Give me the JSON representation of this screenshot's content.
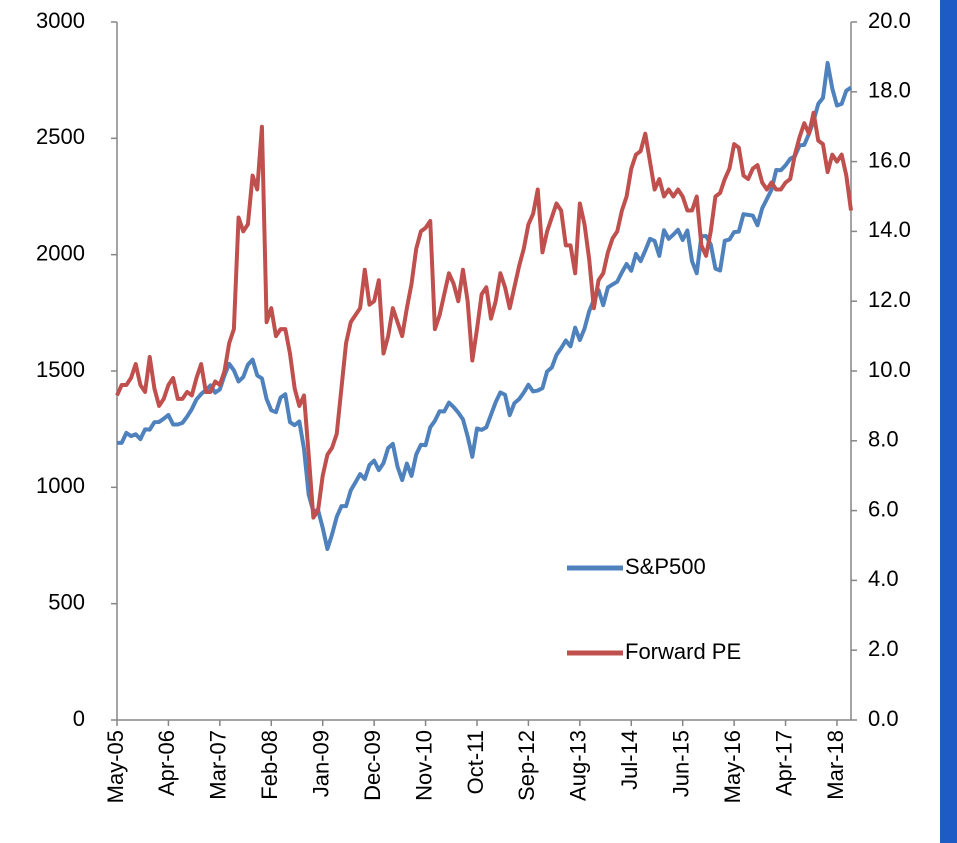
{
  "chart_data": {
    "type": "line",
    "categories": [
      "May-05",
      null,
      null,
      null,
      null,
      null,
      null,
      null,
      null,
      null,
      null,
      "Apr-06",
      null,
      null,
      null,
      null,
      null,
      null,
      null,
      null,
      null,
      null,
      "Mar-07",
      null,
      null,
      null,
      null,
      null,
      null,
      null,
      null,
      null,
      null,
      "Feb-08",
      null,
      null,
      null,
      null,
      null,
      null,
      null,
      null,
      null,
      null,
      "Jan-09",
      null,
      null,
      null,
      null,
      null,
      null,
      null,
      null,
      null,
      null,
      "Dec-09",
      null,
      null,
      null,
      null,
      null,
      null,
      null,
      null,
      null,
      null,
      "Nov-10",
      null,
      null,
      null,
      null,
      null,
      null,
      null,
      null,
      null,
      null,
      "Oct-11",
      null,
      null,
      null,
      null,
      null,
      null,
      null,
      null,
      null,
      null,
      "Sep-12",
      null,
      null,
      null,
      null,
      null,
      null,
      null,
      null,
      null,
      null,
      "Aug-13",
      null,
      null,
      null,
      null,
      null,
      null,
      null,
      null,
      null,
      null,
      "Jul-14",
      null,
      null,
      null,
      null,
      null,
      null,
      null,
      null,
      null,
      null,
      "Jun-15",
      null,
      null,
      null,
      null,
      null,
      null,
      null,
      null,
      null,
      null,
      "May-16",
      null,
      null,
      null,
      null,
      null,
      null,
      null,
      null,
      null,
      null,
      "Apr-17",
      null,
      null,
      null,
      null,
      null,
      null,
      null,
      null,
      null,
      null,
      "Mar-18",
      null,
      null,
      null
    ],
    "series": [
      {
        "name": "S&P500",
        "color": "#4f81bd",
        "axis": "y",
        "values": [
          1191,
          1191,
          1234,
          1220,
          1228,
          1207,
          1249,
          1248,
          1280,
          1281,
          1295,
          1311,
          1270,
          1270,
          1277,
          1304,
          1336,
          1378,
          1401,
          1418,
          1438,
          1407,
          1421,
          1482,
          1531,
          1503,
          1455,
          1474,
          1527,
          1549,
          1481,
          1468,
          1379,
          1331,
          1323,
          1386,
          1400,
          1280,
          1267,
          1283,
          1165,
          969,
          896,
          903,
          826,
          735,
          798,
          873,
          919,
          919,
          987,
          1021,
          1057,
          1036,
          1096,
          1115,
          1074,
          1104,
          1169,
          1187,
          1089,
          1031,
          1102,
          1049,
          1141,
          1183,
          1181,
          1258,
          1286,
          1327,
          1326,
          1364,
          1345,
          1321,
          1292,
          1219,
          1131,
          1253,
          1247,
          1258,
          1312,
          1366,
          1408,
          1398,
          1310,
          1362,
          1379,
          1407,
          1441,
          1412,
          1416,
          1426,
          1498,
          1515,
          1569,
          1598,
          1631,
          1606,
          1686,
          1633,
          1682,
          1757,
          1806,
          1848,
          1783,
          1859,
          1872,
          1884,
          1924,
          1960,
          1931,
          2003,
          1972,
          2018,
          2068,
          2059,
          1995,
          2105,
          2068,
          2086,
          2107,
          2063,
          2104,
          1972,
          1920,
          2079,
          2080,
          2044,
          1940,
          1932,
          2060,
          2065,
          2097,
          2099,
          2174,
          2171,
          2168,
          2126,
          2199,
          2239,
          2279,
          2364,
          2363,
          2384,
          2412,
          2423,
          2470,
          2472,
          2519,
          2575,
          2648,
          2674,
          2824,
          2714,
          2641,
          2648,
          2705,
          2718
        ]
      },
      {
        "name": "Forward PE",
        "color": "#c0504d",
        "axis": "y2",
        "values": [
          9.3,
          9.6,
          9.6,
          9.8,
          10.2,
          9.6,
          9.4,
          10.4,
          9.5,
          9.0,
          9.2,
          9.6,
          9.8,
          9.2,
          9.2,
          9.4,
          9.3,
          9.8,
          10.2,
          9.4,
          9.4,
          9.7,
          9.6,
          10.0,
          10.8,
          11.2,
          14.4,
          14.0,
          14.2,
          15.6,
          15.2,
          17.0,
          11.4,
          11.8,
          11.0,
          11.2,
          11.2,
          10.5,
          9.5,
          9.0,
          9.3,
          7.6,
          5.8,
          6.0,
          7.0,
          7.6,
          7.8,
          8.2,
          9.5,
          10.8,
          11.4,
          11.6,
          11.8,
          12.9,
          11.9,
          12.0,
          12.6,
          10.5,
          11.0,
          11.8,
          11.4,
          11.0,
          11.8,
          12.5,
          13.5,
          14.0,
          14.1,
          14.3,
          11.2,
          11.6,
          12.2,
          12.8,
          12.5,
          12.0,
          12.9,
          12.0,
          10.3,
          11.2,
          12.2,
          12.4,
          11.5,
          12.0,
          12.8,
          12.4,
          11.8,
          12.4,
          13.0,
          13.5,
          14.2,
          14.5,
          15.2,
          13.4,
          14.0,
          14.4,
          14.8,
          14.6,
          13.6,
          13.6,
          12.8,
          14.8,
          14.2,
          13.2,
          11.8,
          12.6,
          12.8,
          13.4,
          13.8,
          14.0,
          14.6,
          15.0,
          15.8,
          16.2,
          16.3,
          16.8,
          16.0,
          15.2,
          15.5,
          15.0,
          15.2,
          15.0,
          15.2,
          15.0,
          14.6,
          14.6,
          15.0,
          13.6,
          13.3,
          14.0,
          15.0,
          15.1,
          15.5,
          15.8,
          16.5,
          16.4,
          15.6,
          15.5,
          15.8,
          15.9,
          15.4,
          15.2,
          15.4,
          15.2,
          15.2,
          15.4,
          15.5,
          16.2,
          16.7,
          17.1,
          16.8,
          17.4,
          16.6,
          16.5,
          15.7,
          16.2,
          16.0,
          16.2,
          15.6,
          14.6
        ]
      }
    ],
    "ylim": [
      0,
      3000
    ],
    "yticks": [
      0,
      500,
      1000,
      1500,
      2000,
      2500,
      3000
    ],
    "y2lim": [
      0,
      20
    ],
    "y2ticks": [
      {
        "value": 0,
        "label": "0.0"
      },
      {
        "value": 2,
        "label": "2.0"
      },
      {
        "value": 4,
        "label": "4.0"
      },
      {
        "value": 6,
        "label": "6.0"
      },
      {
        "value": 8,
        "label": "8.0"
      },
      {
        "value": 10,
        "label": "10.0"
      },
      {
        "value": 12,
        "label": "12.0"
      },
      {
        "value": 14,
        "label": "14.0"
      },
      {
        "value": 16,
        "label": "16.0"
      },
      {
        "value": 18,
        "label": "18.0"
      },
      {
        "value": 20,
        "label": "20.0"
      }
    ],
    "grid": false,
    "legend": "lower right"
  }
}
